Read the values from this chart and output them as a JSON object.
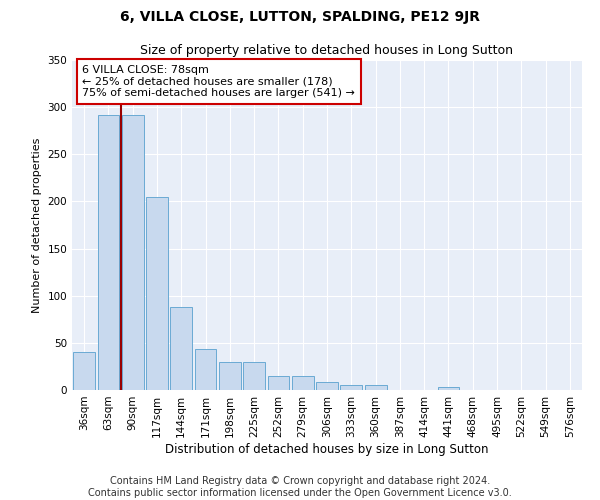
{
  "title": "6, VILLA CLOSE, LUTTON, SPALDING, PE12 9JR",
  "subtitle": "Size of property relative to detached houses in Long Sutton",
  "xlabel": "Distribution of detached houses by size in Long Sutton",
  "ylabel": "Number of detached properties",
  "categories": [
    "36sqm",
    "63sqm",
    "90sqm",
    "117sqm",
    "144sqm",
    "171sqm",
    "198sqm",
    "225sqm",
    "252sqm",
    "279sqm",
    "306sqm",
    "333sqm",
    "360sqm",
    "387sqm",
    "414sqm",
    "441sqm",
    "468sqm",
    "495sqm",
    "522sqm",
    "549sqm",
    "576sqm"
  ],
  "values": [
    40,
    292,
    292,
    205,
    88,
    43,
    30,
    30,
    15,
    15,
    8,
    5,
    5,
    0,
    0,
    3,
    0,
    0,
    0,
    0,
    0
  ],
  "bar_color": "#c8d9ee",
  "bar_edge_color": "#6aaad4",
  "vline_color": "#990000",
  "annotation_text": "6 VILLA CLOSE: 78sqm\n← 25% of detached houses are smaller (178)\n75% of semi-detached houses are larger (541) →",
  "annotation_box_color": "#ffffff",
  "annotation_box_edge_color": "#cc0000",
  "ylim": [
    0,
    350
  ],
  "yticks": [
    0,
    50,
    100,
    150,
    200,
    250,
    300,
    350
  ],
  "background_color": "#e8eef8",
  "footer": "Contains HM Land Registry data © Crown copyright and database right 2024.\nContains public sector information licensed under the Open Government Licence v3.0.",
  "title_fontsize": 10,
  "subtitle_fontsize": 9,
  "xlabel_fontsize": 8.5,
  "ylabel_fontsize": 8,
  "footer_fontsize": 7,
  "annotation_fontsize": 8,
  "tick_fontsize": 7.5
}
